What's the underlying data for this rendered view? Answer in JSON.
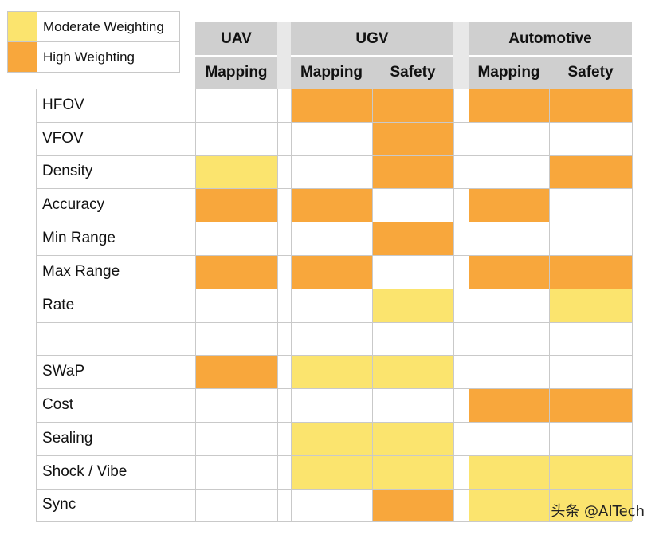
{
  "colors": {
    "moderate": "#fbe46e",
    "high": "#f8a73c",
    "header": "#cfcfcf"
  },
  "legend": [
    {
      "label": "Moderate Weighting",
      "level": "moderate"
    },
    {
      "label": "High Weighting",
      "level": "high"
    }
  ],
  "chart_data": {
    "type": "table",
    "groups": [
      {
        "label": "UAV",
        "columns": [
          "Mapping"
        ]
      },
      {
        "label": "UGV",
        "columns": [
          "Mapping",
          "Safety"
        ]
      },
      {
        "label": "Automotive",
        "columns": [
          "Mapping",
          "Safety"
        ]
      }
    ],
    "rows": [
      {
        "label": "HFOV",
        "cells": [
          "",
          "high",
          "high",
          "high",
          "high"
        ]
      },
      {
        "label": "VFOV",
        "cells": [
          "",
          "",
          "high",
          "",
          ""
        ]
      },
      {
        "label": "Density",
        "cells": [
          "moderate",
          "",
          "high",
          "",
          "high"
        ]
      },
      {
        "label": "Accuracy",
        "cells": [
          "high",
          "high",
          "",
          "high",
          ""
        ]
      },
      {
        "label": "Min Range",
        "cells": [
          "",
          "",
          "high",
          "",
          ""
        ]
      },
      {
        "label": "Max Range",
        "cells": [
          "high",
          "high",
          "",
          "high",
          "high"
        ]
      },
      {
        "label": "Rate",
        "cells": [
          "",
          "",
          "moderate",
          "",
          "moderate"
        ]
      },
      {
        "label": "",
        "cells": [
          "",
          "",
          "",
          "",
          ""
        ]
      },
      {
        "label": "SWaP",
        "cells": [
          "high",
          "moderate",
          "moderate",
          "",
          ""
        ]
      },
      {
        "label": "Cost",
        "cells": [
          "",
          "",
          "",
          "high",
          "high"
        ]
      },
      {
        "label": "Sealing",
        "cells": [
          "",
          "moderate",
          "moderate",
          "",
          ""
        ]
      },
      {
        "label": "Shock / Vibe",
        "cells": [
          "",
          "moderate",
          "moderate",
          "moderate",
          "moderate"
        ]
      },
      {
        "label": "Sync",
        "cells": [
          "",
          "",
          "high",
          "moderate",
          "moderate"
        ]
      }
    ]
  },
  "watermark": "头条 @AITech"
}
